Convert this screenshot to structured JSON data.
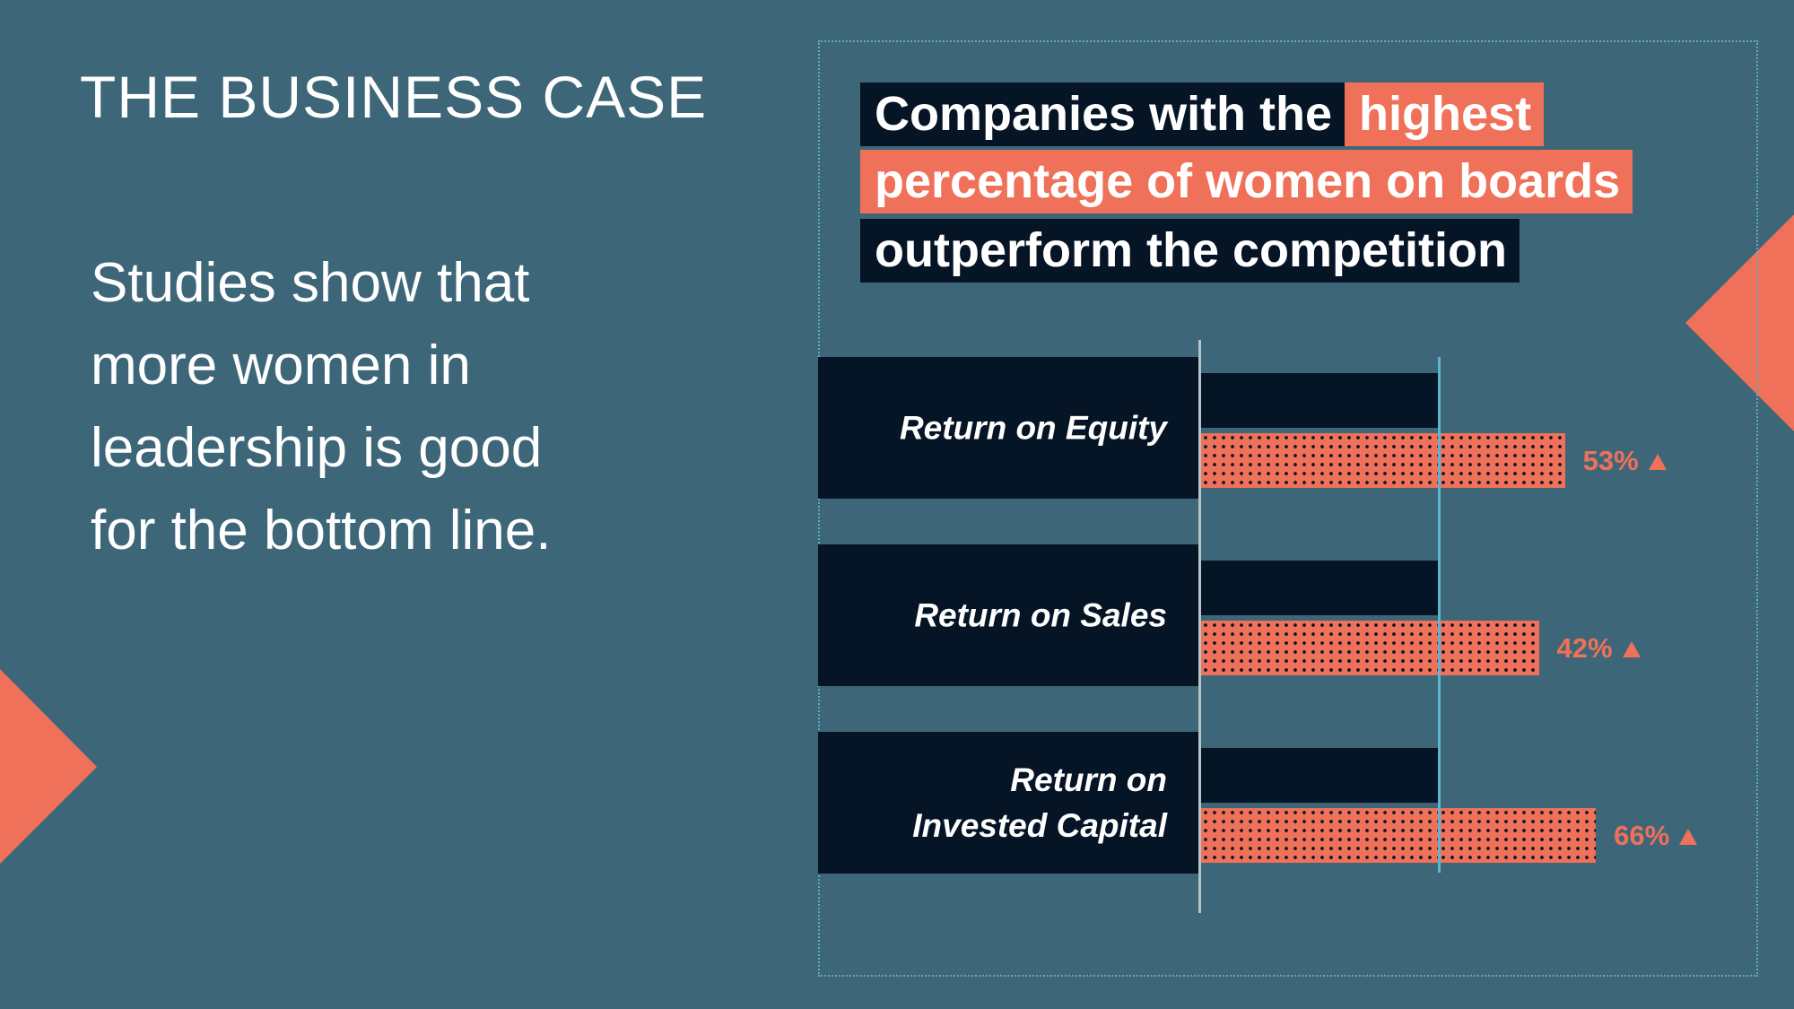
{
  "header": {
    "title": "THE BUSINESS CASE"
  },
  "body": {
    "lines": [
      "Studies show that",
      "more women in",
      "leadership is good",
      "for the bottom line."
    ]
  },
  "chart_data": {
    "type": "bar",
    "title_lines": [
      [
        "Companies with the",
        "highest"
      ],
      [
        "percentage of women on boards"
      ],
      [
        "outperform the competition"
      ]
    ],
    "categories": [
      "Return on Equity",
      "Return on Sales",
      "Return on Invested Capital"
    ],
    "series": [
      {
        "color": "#061526",
        "values": [
          100,
          100,
          100
        ]
      },
      {
        "color": "#f07159",
        "values": [
          53,
          42,
          66
        ],
        "value_labels": [
          "53%",
          "42%",
          "66%"
        ]
      }
    ],
    "xlim": [
      0,
      175
    ]
  }
}
